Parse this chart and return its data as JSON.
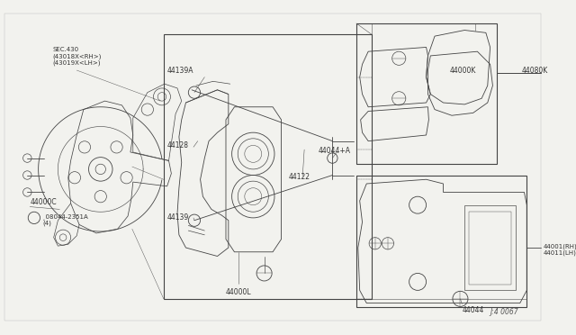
{
  "bg_color": "#f2f2ee",
  "line_color": "#444444",
  "diagram_id": "J:4 0067",
  "figsize": [
    6.4,
    3.72
  ],
  "dpi": 100,
  "labels": {
    "sec430": "SEC.430\n(43018X<RH>)\n(43019X<LH>)",
    "44000C": "44000C",
    "bolt": "¸08044-2351A\n(4)",
    "44139A": "44139A",
    "44128": "44128",
    "44139": "44139",
    "44122": "44122",
    "44044A": "44044+A",
    "44000L": "44000L",
    "44044": "44044",
    "44001": "44001(RH)\n44011(LH)",
    "44000K": "44000K",
    "44080K": "44080K"
  }
}
